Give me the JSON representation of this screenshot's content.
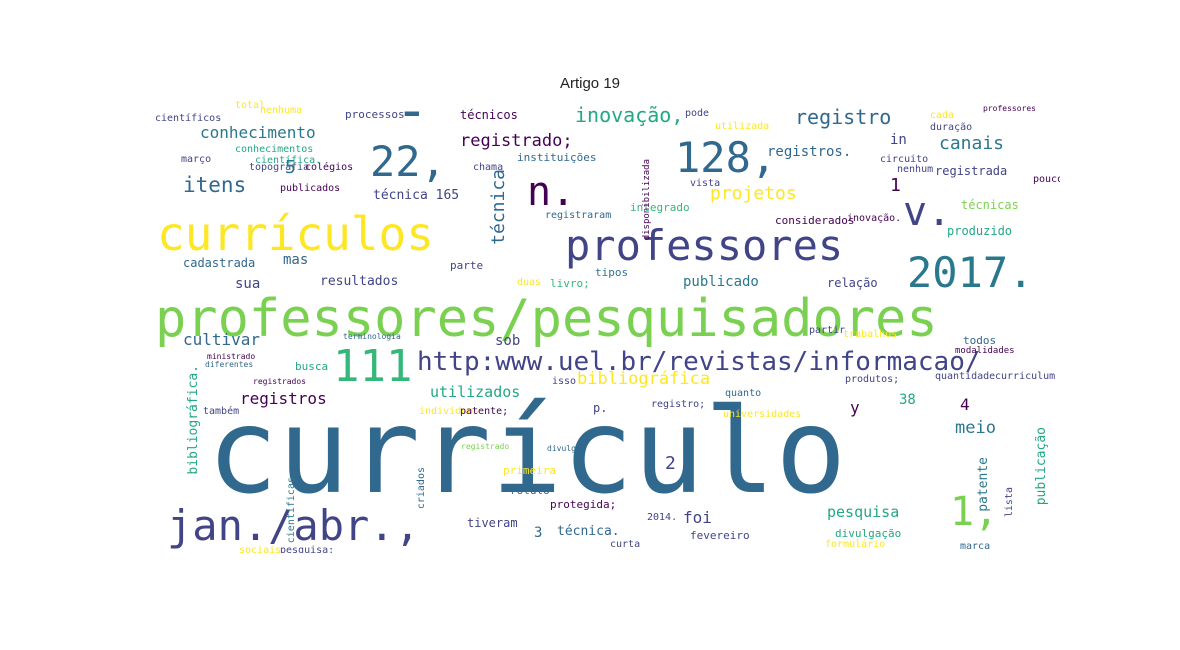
{
  "title": "Artigo 19",
  "palette": {
    "c0": "#440154",
    "c1": "#414487",
    "c2": "#2a788e",
    "c3": "#22a884",
    "c4": "#7ad151",
    "c5": "#fde725",
    "c6": "#31688e",
    "c7": "#35b779"
  },
  "words": [
    {
      "text": "currículo",
      "color": "c6"
    },
    {
      "text": "professores/pesquisadores",
      "color": "c4"
    },
    {
      "text": "currículos",
      "color": "c5"
    },
    {
      "text": "professores",
      "color": "c1"
    },
    {
      "text": "2017.",
      "color": "c2"
    },
    {
      "text": "jan./abr.,",
      "color": "c1"
    },
    {
      "text": "128,",
      "color": "c6"
    },
    {
      "text": "22,",
      "color": "c6"
    },
    {
      "text": "n.",
      "color": "c0"
    },
    {
      "text": "v.",
      "color": "c1"
    },
    {
      "text": "1,",
      "color": "c4"
    },
    {
      "text": "111",
      "color": "c7"
    },
    {
      "text": "http:www.uel.br/revistas/informacao/",
      "color": "c1"
    },
    {
      "text": "-",
      "color": "c6"
    },
    {
      "text": "bibliográfica",
      "color": "c5"
    },
    {
      "text": "inovação,",
      "color": "c3"
    },
    {
      "text": "registro",
      "color": "c6"
    },
    {
      "text": "registrado;",
      "color": "c0"
    },
    {
      "text": "projetos",
      "color": "c5"
    },
    {
      "text": "técnica",
      "color": "c6"
    },
    {
      "text": "canais",
      "color": "c2"
    },
    {
      "text": "itens",
      "color": "c6"
    },
    {
      "text": "conhecimento",
      "color": "c2"
    },
    {
      "text": "registros",
      "color": "c0"
    },
    {
      "text": "pesquisa",
      "color": "c3"
    },
    {
      "text": "foi",
      "color": "c1"
    },
    {
      "text": "registros.",
      "color": "c6"
    },
    {
      "text": "cultivar",
      "color": "c6"
    },
    {
      "text": "utilizados",
      "color": "c3"
    },
    {
      "text": "bibliográfica.",
      "color": "c3"
    },
    {
      "text": "meio",
      "color": "c2"
    },
    {
      "text": "patente",
      "color": "c2"
    },
    {
      "text": "publicação",
      "color": "c3"
    },
    {
      "text": "resultados",
      "color": "c1"
    },
    {
      "text": "publicado",
      "color": "c2"
    },
    {
      "text": "técnica 165",
      "color": "c1"
    },
    {
      "text": "registrada",
      "color": "c1"
    },
    {
      "text": "técnicas",
      "color": "c4"
    },
    {
      "text": "produzido",
      "color": "c3"
    },
    {
      "text": "cadastrada",
      "color": "c6"
    },
    {
      "text": "mas",
      "color": "c6"
    },
    {
      "text": "sua",
      "color": "c1"
    },
    {
      "text": "técnicos",
      "color": "c0"
    },
    {
      "text": "processos",
      "color": "c1"
    },
    {
      "text": "instituições",
      "color": "c6"
    },
    {
      "text": "considerados",
      "color": "c0"
    },
    {
      "text": "integrado",
      "color": "c7"
    },
    {
      "text": "relação",
      "color": "c1"
    },
    {
      "text": "fevereiro",
      "color": "c1"
    },
    {
      "text": "divulgação",
      "color": "c3"
    },
    {
      "text": "tiveram",
      "color": "c1"
    },
    {
      "text": "técnica.",
      "color": "c6"
    },
    {
      "text": "busca",
      "color": "c3"
    },
    {
      "text": "sob",
      "color": "c1"
    },
    {
      "text": "registraram",
      "color": "c6"
    },
    {
      "text": "parte",
      "color": "c1"
    },
    {
      "text": "tipos",
      "color": "c2"
    },
    {
      "text": "livro;",
      "color": "c7"
    },
    {
      "text": "duas",
      "color": "c5"
    },
    {
      "text": "todos",
      "color": "c6"
    },
    {
      "text": "quantidade",
      "color": "c1"
    },
    {
      "text": "curriculum",
      "color": "c1"
    },
    {
      "text": "primeira",
      "color": "c5"
    },
    {
      "text": "rótulo",
      "color": "c6"
    },
    {
      "text": "protegida;",
      "color": "c0"
    },
    {
      "text": "marca",
      "color": "c6"
    },
    {
      "text": "lista",
      "color": "c1"
    },
    {
      "text": "formulário",
      "color": "c5"
    },
    {
      "text": "científicas",
      "color": "c2"
    },
    {
      "text": "criados",
      "color": "c6"
    },
    {
      "text": "colégios",
      "color": "c0"
    },
    {
      "text": "publicados",
      "color": "c0"
    },
    {
      "text": "topografia",
      "color": "c1"
    },
    {
      "text": "científica.",
      "color": "c3"
    },
    {
      "text": "março",
      "color": "c1"
    },
    {
      "text": "científicos",
      "color": "c1"
    },
    {
      "text": "conhecimentos",
      "color": "c3"
    },
    {
      "text": "nenhuma",
      "color": "c5"
    },
    {
      "text": "total",
      "color": "c5"
    },
    {
      "text": "pode",
      "color": "c1"
    },
    {
      "text": "utilizada",
      "color": "c5"
    },
    {
      "text": "cada",
      "color": "c5"
    },
    {
      "text": "duração",
      "color": "c1"
    },
    {
      "text": "circuito",
      "color": "c1"
    },
    {
      "text": "nenhum",
      "color": "c1"
    },
    {
      "text": "inovação.",
      "color": "c0"
    },
    {
      "text": "vista",
      "color": "c1"
    },
    {
      "text": "chama",
      "color": "c1"
    },
    {
      "text": "pouco",
      "color": "c0"
    },
    {
      "text": "in",
      "color": "c1"
    },
    {
      "text": "5",
      "color": "c2"
    },
    {
      "text": "1",
      "color": "c0"
    },
    {
      "text": "2",
      "color": "c1"
    },
    {
      "text": "3",
      "color": "c6"
    },
    {
      "text": "4",
      "color": "c0"
    },
    {
      "text": "38",
      "color": "c3"
    },
    {
      "text": "y",
      "color": "c0"
    },
    {
      "text": "p.",
      "color": "c1"
    },
    {
      "text": "registro;",
      "color": "c1"
    },
    {
      "text": "quanto",
      "color": "c6"
    },
    {
      "text": "universidades",
      "color": "c5"
    },
    {
      "text": "produtos;",
      "color": "c1"
    },
    {
      "text": "isso",
      "color": "c1"
    },
    {
      "text": "partir",
      "color": "c1"
    },
    {
      "text": "trabalhos",
      "color": "c5"
    },
    {
      "text": "indivíduos",
      "color": "c5"
    },
    {
      "text": "patente;",
      "color": "c0"
    },
    {
      "text": "também",
      "color": "c1"
    },
    {
      "text": "curta",
      "color": "c1"
    },
    {
      "text": "sociais",
      "color": "c5"
    },
    {
      "text": "pesquisa;",
      "color": "c1"
    },
    {
      "text": "2014.",
      "color": "c1"
    },
    {
      "text": "disponibilizada",
      "color": "c0"
    },
    {
      "text": "modalidades",
      "color": "c0"
    },
    {
      "text": "diferentes",
      "color": "c6"
    },
    {
      "text": "ministrado",
      "color": "c0"
    },
    {
      "text": "registrados",
      "color": "c0"
    },
    {
      "text": "professores",
      "color": "c0"
    },
    {
      "text": "divulgar",
      "color": "c6"
    },
    {
      "text": "terminologia",
      "color": "c6"
    },
    {
      "text": "registrado",
      "color": "c4"
    }
  ]
}
